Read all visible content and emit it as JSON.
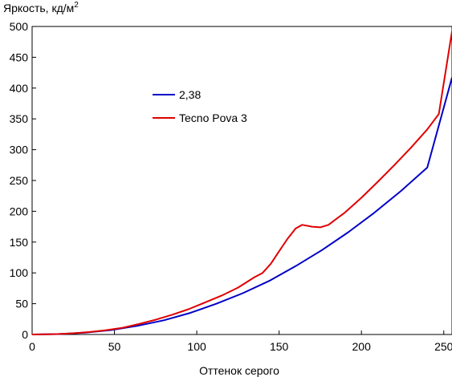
{
  "chart_data": {
    "type": "line",
    "ylabel": "Яркость, кд/м",
    "ylabel_superscript": "2",
    "xlabel": "Оттенок серого",
    "xlim": [
      0,
      255
    ],
    "ylim": [
      0,
      500
    ],
    "x_ticks": [
      0,
      50,
      100,
      150,
      200,
      250
    ],
    "y_ticks": [
      0,
      50,
      100,
      150,
      200,
      250,
      300,
      350,
      400,
      450,
      500
    ],
    "grid": false,
    "legend_position": "upper-center",
    "series": [
      {
        "name": "2,38",
        "color": "#0000c8",
        "x": [
          0,
          16,
          32,
          48,
          64,
          80,
          96,
          112,
          128,
          144,
          160,
          176,
          192,
          208,
          224,
          240,
          255
        ],
        "y": [
          0,
          0.6,
          2.9,
          7.2,
          14,
          23,
          35,
          50,
          67,
          87,
          111,
          137,
          166,
          198,
          233,
          271,
          417
        ]
      },
      {
        "name": "Tecno Pova 3",
        "color": "#e00000",
        "x": [
          0,
          15,
          25,
          35,
          45,
          55,
          65,
          75,
          85,
          95,
          105,
          115,
          125,
          135,
          140,
          145,
          150,
          155,
          160,
          164,
          170,
          175,
          180,
          185,
          190,
          200,
          210,
          220,
          230,
          240,
          247,
          255
        ],
        "y": [
          0,
          0.7,
          2,
          4,
          7,
          11,
          17,
          24,
          32,
          41,
          52,
          63,
          76,
          93,
          100,
          115,
          135,
          155,
          172,
          178,
          175,
          174,
          178,
          188,
          198,
          222,
          248,
          275,
          303,
          333,
          358,
          492
        ]
      }
    ]
  }
}
